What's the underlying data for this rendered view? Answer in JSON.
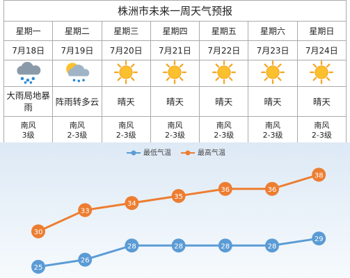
{
  "header": {
    "title": "株洲市未来一周天气预报"
  },
  "table": {
    "days": [
      {
        "weekday": "星期一",
        "date": "7月18日",
        "weather": "大雨局地暴雨",
        "wind": "南风",
        "level": "3级"
      },
      {
        "weekday": "星期二",
        "date": "7月19日",
        "weather": "阵雨转多云",
        "wind": "南风",
        "level": "2-3级"
      },
      {
        "weekday": "星期三",
        "date": "7月20日",
        "weather": "晴天",
        "wind": "南风",
        "level": "2-3级"
      },
      {
        "weekday": "星期四",
        "date": "7月21日",
        "weather": "晴天",
        "wind": "南风",
        "level": "2-3级"
      },
      {
        "weekday": "星期五",
        "date": "7月22日",
        "weather": "晴天",
        "wind": "南风",
        "level": "2-3级"
      },
      {
        "weekday": "星期六",
        "date": "7月23日",
        "weather": "晴天",
        "wind": "南风",
        "level": "2-3级"
      },
      {
        "weekday": "星期日",
        "date": "7月24日",
        "weather": "晴天",
        "wind": "南风",
        "level": "2-3级"
      }
    ]
  },
  "chart_data": {
    "type": "line",
    "series": [
      {
        "name": "最低气温",
        "color": "#5b9bd5",
        "values": [
          25,
          26,
          28,
          28,
          28,
          28,
          29
        ]
      },
      {
        "name": "最高气温",
        "color": "#ed7d31",
        "values": [
          30,
          33,
          34,
          35,
          36,
          36,
          38
        ]
      }
    ],
    "ylim": [
      24,
      40
    ]
  }
}
